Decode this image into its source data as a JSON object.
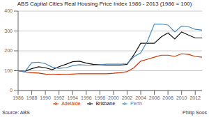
{
  "chart_data": {
    "type": "line",
    "title": "ABS Capital Cities Real Housing Price Index 1986 - 2013 (1986 = 100)",
    "x": [
      1986,
      1987,
      1988,
      1989,
      1990,
      1991,
      1992,
      1993,
      1994,
      1995,
      1996,
      1997,
      1998,
      1999,
      2000,
      2001,
      2002,
      2003,
      2004,
      2005,
      2006,
      2007,
      2008,
      2009,
      2010,
      2011,
      2012,
      2013
    ],
    "series": [
      {
        "name": "Brisbane",
        "color": "#111111",
        "values": [
          100,
          97,
          110,
          120,
          115,
          105,
          120,
          132,
          145,
          148,
          138,
          132,
          130,
          128,
          128,
          128,
          132,
          180,
          238,
          238,
          238,
          270,
          290,
          260,
          295,
          280,
          265,
          265
        ]
      },
      {
        "name": "Adelaide",
        "color": "#cc3300",
        "values": [
          100,
          93,
          90,
          88,
          83,
          80,
          82,
          80,
          83,
          85,
          85,
          85,
          85,
          85,
          87,
          90,
          95,
          115,
          148,
          158,
          168,
          178,
          178,
          172,
          185,
          182,
          172,
          168
        ]
      },
      {
        "name": "Perth",
        "color": "#4488bb",
        "values": [
          100,
          95,
          140,
          143,
          135,
          118,
          112,
          115,
          125,
          130,
          128,
          128,
          130,
          133,
          133,
          133,
          135,
          170,
          190,
          250,
          335,
          335,
          330,
          295,
          325,
          322,
          308,
          305
        ]
      }
    ],
    "xlim": [
      1986,
      2013
    ],
    "xticks": [
      1986,
      1988,
      1990,
      1992,
      1994,
      1996,
      1998,
      2000,
      2002,
      2004,
      2006,
      2008,
      2010,
      2012
    ],
    "ylim": [
      0,
      400
    ],
    "yticks": [
      0,
      100,
      200,
      300,
      400
    ],
    "grid": true,
    "legend": "bottom",
    "annotations": [
      "Source: ABS",
      "Philip Soos"
    ]
  }
}
